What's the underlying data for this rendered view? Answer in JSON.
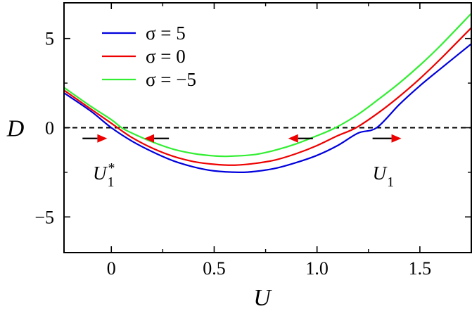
{
  "chart_data": {
    "type": "line",
    "xlabel": "U",
    "ylabel": "D",
    "xlim": [
      -0.23,
      1.75
    ],
    "ylim": [
      -7,
      7
    ],
    "x_ticks": [
      0,
      0.5,
      1.0,
      1.5
    ],
    "x_tick_labels": [
      "0",
      "0.5",
      "1.0",
      "1.5"
    ],
    "y_ticks": [
      -5,
      0,
      5
    ],
    "y_tick_labels": [
      "−5",
      "0",
      "5"
    ],
    "grid": false,
    "legend_position": "top-left",
    "series": [
      {
        "name": "σ = 5",
        "color": "#0000dd",
        "x": [
          -0.23,
          -0.1,
          0.0,
          0.1,
          0.2,
          0.3,
          0.4,
          0.5,
          0.62,
          0.7,
          0.8,
          0.9,
          1.0,
          1.1,
          1.2,
          1.29,
          1.4,
          1.5,
          1.6,
          1.75
        ],
        "y": [
          1.95,
          0.93,
          0.0,
          -0.75,
          -1.35,
          -1.85,
          -2.2,
          -2.42,
          -2.5,
          -2.45,
          -2.27,
          -1.95,
          -1.55,
          -1.0,
          -0.3,
          0.0,
          1.3,
          2.35,
          3.3,
          4.7
        ]
      },
      {
        "name": "σ = 0",
        "color": "#ee0000",
        "x": [
          -0.23,
          -0.1,
          0.0,
          0.03,
          0.1,
          0.2,
          0.3,
          0.4,
          0.5,
          0.6,
          0.7,
          0.8,
          0.9,
          1.0,
          1.1,
          1.19,
          1.3,
          1.4,
          1.5,
          1.6,
          1.75
        ],
        "y": [
          2.1,
          1.05,
          0.25,
          0.0,
          -0.55,
          -1.15,
          -1.6,
          -1.9,
          -2.05,
          -2.1,
          -2.0,
          -1.8,
          -1.45,
          -1.0,
          -0.45,
          0.0,
          0.85,
          1.75,
          2.75,
          3.85,
          5.6
        ]
      },
      {
        "name": "σ = −5",
        "color": "#33ee33",
        "x": [
          -0.23,
          -0.1,
          0.0,
          0.05,
          0.1,
          0.2,
          0.3,
          0.4,
          0.5,
          0.57,
          0.7,
          0.8,
          0.9,
          1.0,
          1.09,
          1.2,
          1.3,
          1.4,
          1.5,
          1.6,
          1.75
        ],
        "y": [
          2.25,
          1.2,
          0.45,
          0.0,
          -0.3,
          -0.8,
          -1.2,
          -1.45,
          -1.58,
          -1.6,
          -1.5,
          -1.25,
          -0.9,
          -0.45,
          0.0,
          0.75,
          1.6,
          2.5,
          3.5,
          4.6,
          6.4
        ]
      }
    ],
    "reference_line": {
      "y": 0,
      "style": "dashed",
      "color": "#000000"
    },
    "arrows": [
      {
        "x_from": -0.14,
        "x_to": -0.02,
        "y": -0.6,
        "color": "#ee0000"
      },
      {
        "x_from": 0.28,
        "x_to": 0.16,
        "y": -0.6,
        "color": "#ee0000"
      },
      {
        "x_from": 0.98,
        "x_to": 0.86,
        "y": -0.6,
        "color": "#ee0000"
      },
      {
        "x_from": 1.27,
        "x_to": 1.41,
        "y": -0.6,
        "color": "#ee0000"
      }
    ],
    "annotations": [
      {
        "text": "U",
        "subscript": "1",
        "superscript": "*",
        "x": -0.09,
        "y": -2.9
      },
      {
        "text": "U",
        "subscript": "1",
        "x": 1.27,
        "y": -2.9
      }
    ]
  }
}
